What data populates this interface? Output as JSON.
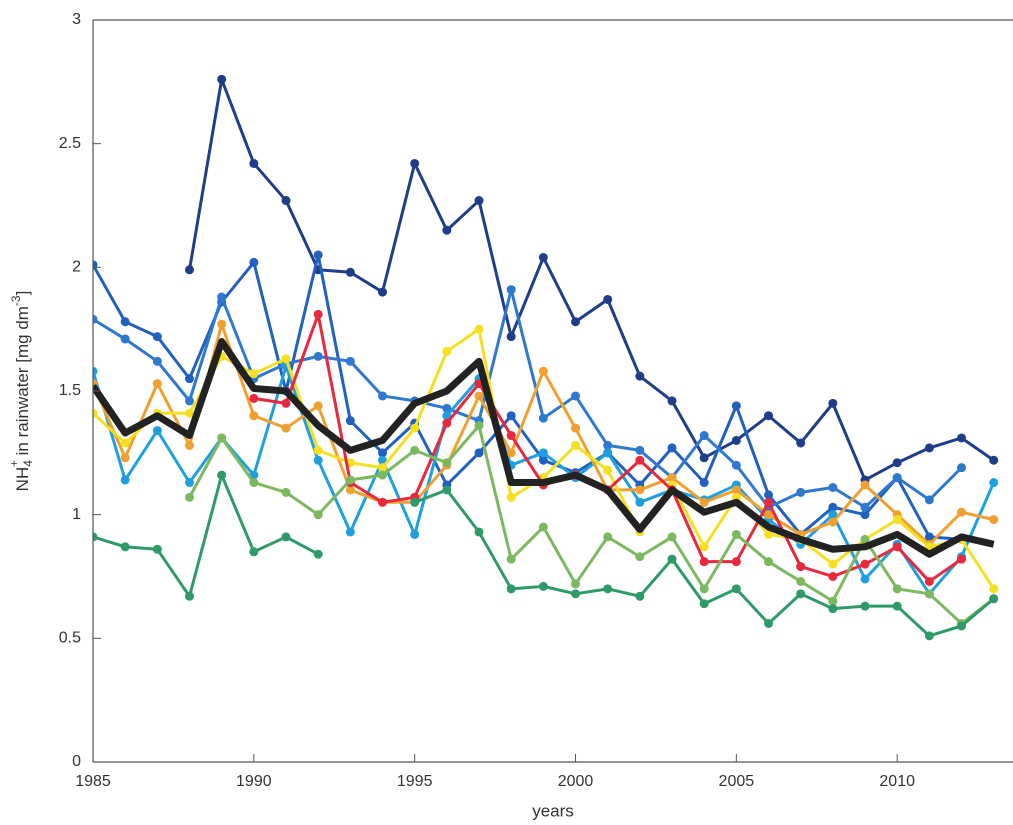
{
  "chart_data": {
    "type": "line",
    "ylabel": [
      "NH",
      "4",
      "+",
      " in rainwater [mg dm",
      "-3",
      "]"
    ],
    "xlabel": "years",
    "x": [
      1985,
      1986,
      1987,
      1988,
      1989,
      1990,
      1991,
      1992,
      1993,
      1994,
      1995,
      1996,
      1997,
      1998,
      1999,
      2000,
      2001,
      2002,
      2003,
      2004,
      2005,
      2006,
      2007,
      2008,
      2009,
      2010,
      2011,
      2012,
      2013
    ],
    "xlim": [
      1985,
      2013.6
    ],
    "xticks": [
      1985,
      1990,
      1995,
      2000,
      2005,
      2010
    ],
    "ylim": [
      0,
      3
    ],
    "yticks": [
      0,
      0.5,
      1,
      1.5,
      2,
      2.5,
      3
    ],
    "series": [
      {
        "color": "#1f3d8a",
        "values": [
          null,
          null,
          null,
          1.99,
          2.76,
          2.42,
          2.27,
          1.99,
          1.98,
          1.9,
          2.42,
          2.15,
          2.27,
          1.72,
          2.04,
          1.78,
          1.87,
          1.56,
          1.46,
          1.23,
          1.3,
          1.4,
          1.29,
          1.45,
          1.14,
          1.21,
          1.27,
          1.31,
          1.22
        ]
      },
      {
        "color": "#2060c0",
        "values": [
          2.01,
          1.78,
          1.72,
          1.55,
          1.86,
          2.02,
          1.5,
          2.05,
          1.38,
          1.25,
          1.37,
          1.12,
          1.25,
          1.4,
          1.22,
          1.17,
          1.25,
          1.12,
          1.27,
          1.13,
          1.44,
          1.08,
          0.92,
          1.03,
          1.0,
          1.15,
          0.91,
          0.9,
          null
        ]
      },
      {
        "color": "#2f78d0",
        "values": [
          1.79,
          1.71,
          1.62,
          1.46,
          1.88,
          1.55,
          1.61,
          1.64,
          1.62,
          1.48,
          1.46,
          1.43,
          1.38,
          1.91,
          1.39,
          1.48,
          1.28,
          1.26,
          1.15,
          1.32,
          1.2,
          1.03,
          1.09,
          1.11,
          1.03,
          1.15,
          1.06,
          1.19,
          null
        ]
      },
      {
        "color": "#1ea0e0",
        "values": [
          1.58,
          1.14,
          1.34,
          1.13,
          1.31,
          1.16,
          1.6,
          1.22,
          0.93,
          1.22,
          0.92,
          1.4,
          1.55,
          1.2,
          1.25,
          1.15,
          1.25,
          1.05,
          1.1,
          1.06,
          1.12,
          0.98,
          0.88,
          1.0,
          0.74,
          0.88,
          0.68,
          0.83,
          1.13
        ]
      },
      {
        "color": "#f0a030",
        "values": [
          1.53,
          1.23,
          1.53,
          1.28,
          1.77,
          1.4,
          1.35,
          1.44,
          1.1,
          1.05,
          1.05,
          1.2,
          1.48,
          1.25,
          1.58,
          1.35,
          1.1,
          1.1,
          1.15,
          1.05,
          1.1,
          1.0,
          0.92,
          0.97,
          1.12,
          1.0,
          0.88,
          1.01,
          0.98
        ]
      },
      {
        "color": "#f5e020",
        "values": [
          1.41,
          1.29,
          1.41,
          1.41,
          1.64,
          1.57,
          1.63,
          1.26,
          1.21,
          1.19,
          1.35,
          1.66,
          1.75,
          1.07,
          1.15,
          1.28,
          1.18,
          0.93,
          1.12,
          0.87,
          1.07,
          0.92,
          0.9,
          0.8,
          0.9,
          0.98,
          0.87,
          0.9,
          0.7
        ]
      },
      {
        "color": "#e8283c",
        "values": [
          null,
          null,
          null,
          null,
          null,
          1.47,
          1.45,
          1.81,
          1.13,
          1.05,
          1.07,
          1.37,
          1.53,
          1.32,
          1.12,
          1.16,
          1.1,
          1.22,
          1.1,
          0.81,
          0.81,
          1.05,
          0.79,
          0.75,
          0.8,
          0.87,
          0.73,
          0.82,
          null
        ]
      },
      {
        "color": "#7cb860",
        "values": [
          null,
          null,
          null,
          1.07,
          1.31,
          1.13,
          1.09,
          1.0,
          1.14,
          1.16,
          1.26,
          1.21,
          1.36,
          0.82,
          0.95,
          0.72,
          0.91,
          0.83,
          0.91,
          0.7,
          0.92,
          0.81,
          0.73,
          0.65,
          0.9,
          0.7,
          0.68,
          0.56,
          0.66
        ]
      },
      {
        "color": "#2e9a6a",
        "values": [
          0.91,
          0.87,
          0.86,
          0.67,
          1.16,
          0.85,
          0.91,
          0.84,
          null,
          null,
          1.05,
          1.1,
          0.93,
          0.7,
          0.71,
          0.68,
          0.7,
          0.67,
          0.82,
          0.64,
          0.7,
          0.56,
          0.68,
          0.62,
          0.63,
          0.63,
          0.51,
          0.55,
          0.66
        ]
      },
      {
        "color": "#222222",
        "line_width": 7,
        "markers": false,
        "values": [
          1.52,
          1.33,
          1.4,
          1.32,
          1.7,
          1.51,
          1.5,
          1.36,
          1.26,
          1.3,
          1.45,
          1.5,
          1.62,
          1.13,
          1.13,
          1.16,
          1.1,
          0.94,
          1.1,
          1.01,
          1.05,
          0.95,
          0.9,
          0.86,
          0.87,
          0.92,
          0.84,
          0.91,
          0.88
        ]
      }
    ]
  }
}
